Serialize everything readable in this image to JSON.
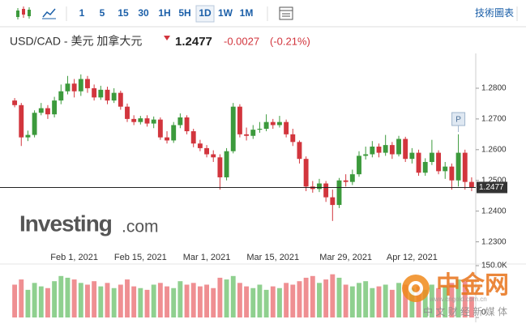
{
  "toolbar": {
    "intervals": [
      "1",
      "5",
      "15",
      "30",
      "1H",
      "5H",
      "1D",
      "1W",
      "1M"
    ],
    "chart_link": "技術圖表"
  },
  "header": {
    "symbol": "USD/CAD - 美元 加拿大元",
    "change": "-0.0027",
    "change_percent": "(-0.21%)"
  },
  "logo": {
    "name": "Investing",
    "suffix": ".com"
  },
  "watermark": {
    "brand": "中金网",
    "url": "www.cngold.com.cn",
    "tagline": "中 文 财 经 新 媒 体"
  },
  "chart_data": {
    "type": "candlestick",
    "last_price": {
      "value": 1.2477,
      "label": "1.2477"
    },
    "annotation": "P",
    "categories": [
      null,
      null,
      null,
      null,
      null,
      null,
      null,
      null,
      null,
      "Feb 1, 2021",
      null,
      null,
      null,
      null,
      null,
      null,
      null,
      null,
      null,
      "Feb 15, 2021",
      null,
      null,
      null,
      null,
      null,
      null,
      null,
      null,
      null,
      "Mar 1, 2021",
      null,
      null,
      null,
      null,
      null,
      null,
      null,
      null,
      null,
      "Mar 15, 2021",
      null,
      null,
      null,
      null,
      null,
      null,
      null,
      null,
      null,
      null,
      "Mar 29, 2021",
      null,
      null,
      null,
      null,
      null,
      null,
      null,
      null,
      null,
      "Apr 12, 2021",
      null,
      null,
      null,
      null,
      null,
      null,
      null,
      null,
      null
    ],
    "open": [
      1.276,
      1.2745,
      1.264,
      1.2648,
      1.272,
      1.2735,
      1.2715,
      1.276,
      1.279,
      1.2815,
      1.279,
      1.283,
      1.28,
      1.277,
      1.2795,
      1.276,
      1.2785,
      1.274,
      1.27,
      1.269,
      1.2702,
      1.2685,
      1.2698,
      1.264,
      1.263,
      1.268,
      1.2705,
      1.266,
      1.262,
      1.2605,
      1.2585,
      1.2575,
      1.251,
      1.2595,
      1.274,
      1.265,
      1.2645,
      1.2665,
      1.2668,
      1.269,
      1.268,
      1.269,
      1.265,
      1.2625,
      1.257,
      1.248,
      1.2472,
      1.249,
      1.2445,
      1.242,
      1.25,
      1.2495,
      1.252,
      1.258,
      1.2585,
      1.261,
      1.259,
      1.2615,
      1.2585,
      1.2635,
      1.257,
      1.259,
      1.2525,
      1.256,
      1.259,
      1.253,
      1.2545,
      1.25,
      1.259,
      1.2495
    ],
    "high": [
      1.2768,
      1.2752,
      1.2662,
      1.2728,
      1.2752,
      1.2745,
      1.2772,
      1.2812,
      1.284,
      1.283,
      1.2845,
      1.284,
      1.2812,
      1.2808,
      1.2805,
      1.28,
      1.2792,
      1.275,
      1.2712,
      1.271,
      1.2712,
      1.2708,
      1.2705,
      1.266,
      1.269,
      1.2718,
      1.2712,
      1.2668,
      1.2632,
      1.2615,
      1.2598,
      1.2585,
      1.2605,
      1.2752,
      1.2748,
      1.2672,
      1.268,
      1.269,
      1.2715,
      1.27,
      1.271,
      1.2698,
      1.2668,
      1.263,
      1.2578,
      1.2498,
      1.2505,
      1.2498,
      1.247,
      1.2508,
      1.252,
      1.2535,
      1.2595,
      1.261,
      1.2628,
      1.262,
      1.2648,
      1.2625,
      1.2645,
      1.2642,
      1.2605,
      1.26,
      1.2572,
      1.2632,
      1.2598,
      1.256,
      1.2555,
      1.265,
      1.26,
      1.251
    ],
    "low": [
      1.2738,
      1.2612,
      1.2628,
      1.264,
      1.2712,
      1.27,
      1.2705,
      1.2748,
      1.278,
      1.277,
      1.2775,
      1.2785,
      1.276,
      1.2762,
      1.2748,
      1.2752,
      1.273,
      1.269,
      1.268,
      1.2682,
      1.2675,
      1.267,
      1.2632,
      1.262,
      1.2622,
      1.267,
      1.265,
      1.2608,
      1.2595,
      1.2575,
      1.256,
      1.247,
      1.25,
      1.2588,
      1.264,
      1.263,
      1.2635,
      1.2655,
      1.266,
      1.2668,
      1.2672,
      1.264,
      1.2612,
      1.2555,
      1.2465,
      1.246,
      1.2462,
      1.243,
      1.2368,
      1.241,
      1.248,
      1.2485,
      1.2512,
      1.2568,
      1.2575,
      1.2575,
      1.258,
      1.257,
      1.2578,
      1.256,
      1.2555,
      1.2515,
      1.2515,
      1.255,
      1.252,
      1.2505,
      1.247,
      1.248,
      1.247,
      1.2465
    ],
    "close": [
      1.2745,
      1.264,
      1.2648,
      1.272,
      1.2735,
      1.2715,
      1.276,
      1.279,
      1.2815,
      1.279,
      1.283,
      1.28,
      1.277,
      1.2795,
      1.276,
      1.2785,
      1.274,
      1.27,
      1.269,
      1.2702,
      1.2685,
      1.2698,
      1.264,
      1.263,
      1.268,
      1.2705,
      1.266,
      1.262,
      1.2605,
      1.2585,
      1.2575,
      1.251,
      1.2595,
      1.274,
      1.265,
      1.2645,
      1.2665,
      1.2668,
      1.269,
      1.268,
      1.269,
      1.265,
      1.2625,
      1.257,
      1.248,
      1.2472,
      1.249,
      1.2445,
      1.242,
      1.25,
      1.2495,
      1.252,
      1.258,
      1.2585,
      1.261,
      1.259,
      1.2615,
      1.2585,
      1.2635,
      1.257,
      1.259,
      1.2525,
      1.256,
      1.259,
      1.253,
      1.2545,
      1.25,
      1.259,
      1.2495,
      1.2477
    ],
    "volume": [
      95000,
      110000,
      80000,
      100000,
      90000,
      85000,
      105000,
      120000,
      115000,
      110000,
      100000,
      95000,
      105000,
      90000,
      100000,
      85000,
      95000,
      110000,
      90000,
      85000,
      80000,
      95000,
      100000,
      90000,
      85000,
      105000,
      95000,
      100000,
      90000,
      95000,
      85000,
      115000,
      110000,
      120000,
      100000,
      90000,
      85000,
      95000,
      80000,
      90000,
      85000,
      100000,
      95000,
      105000,
      115000,
      120000,
      100000,
      110000,
      125000,
      115000,
      95000,
      90000,
      100000,
      105000,
      85000,
      90000,
      95000,
      80000,
      100000,
      95000,
      85000,
      90000,
      80000,
      95000,
      85000,
      90000,
      100000,
      110000,
      105000,
      60000
    ],
    "ylim": [
      1.227,
      1.29
    ],
    "yticks": [
      {
        "value": 1.23,
        "label": "1.2300"
      },
      {
        "value": 1.24,
        "label": "1.2400"
      },
      {
        "value": 1.25,
        "label": "1.2500"
      },
      {
        "value": 1.26,
        "label": "1.2600"
      },
      {
        "value": 1.27,
        "label": "1.2700"
      },
      {
        "value": 1.28,
        "label": "1.2800"
      }
    ],
    "volume_lim": [
      0,
      150000
    ],
    "volume_ticks": [
      0,
      {
        "value": 150000,
        "label": "150.0K"
      }
    ],
    "grid": false,
    "up_color": "#3c9a3c",
    "down_color": "#d2353d",
    "volume_up_color": "#8fd08f",
    "volume_down_color": "#ef8f92"
  }
}
